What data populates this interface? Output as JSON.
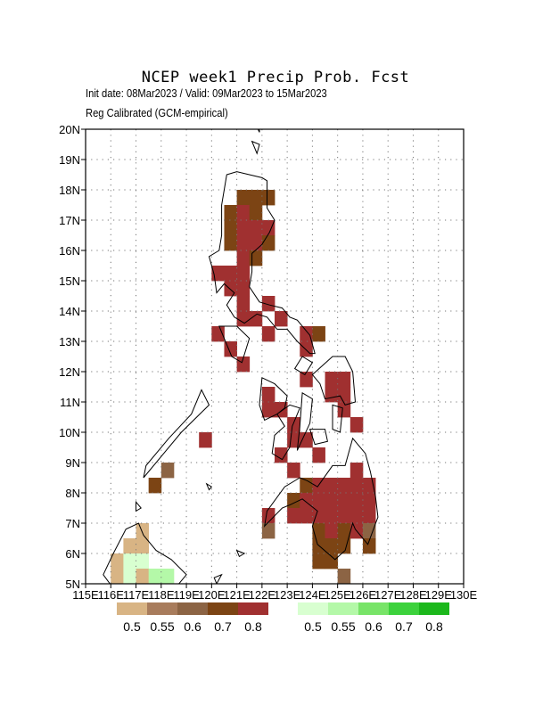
{
  "title": "NCEP week1 Precip Prob. Fcst",
  "subtitle_line1": "Init date: 08Mar2023 / Valid: 09Mar2023 to 15Mar2023",
  "subtitle_line2": "Reg Calibrated (GCM-empirical)",
  "chart_data": {
    "type": "heatmap",
    "title": "NCEP week1 Precip Prob. Fcst",
    "x_axis": {
      "range": [
        115,
        130
      ],
      "tick_labels": [
        "115E",
        "116E",
        "117E",
        "118E",
        "119E",
        "120E",
        "121E",
        "122E",
        "123E",
        "124E",
        "125E",
        "126E",
        "127E",
        "128E",
        "129E",
        "130E"
      ]
    },
    "y_axis": {
      "range": [
        5,
        20
      ],
      "tick_labels": [
        "5N",
        "6N",
        "7N",
        "8N",
        "9N",
        "10N",
        "11N",
        "12N",
        "13N",
        "14N",
        "15N",
        "16N",
        "17N",
        "18N",
        "19N",
        "20N"
      ]
    },
    "grid": true,
    "cell_size_deg": 0.5,
    "legend_below": {
      "below_normal": {
        "colors": [
          "#d8b484",
          "#a87c5c",
          "#8c6444",
          "#7c4414",
          "#a03030"
        ],
        "labels": [
          "0.5",
          "0.55",
          "0.6",
          "0.7",
          "0.8"
        ]
      },
      "above_normal": {
        "colors": [
          "#d8ffd0",
          "#b4f8a8",
          "#78e468",
          "#3cd23c",
          "#1cb81c"
        ],
        "labels": [
          "0.5",
          "0.55",
          "0.6",
          "0.7",
          "0.8"
        ]
      }
    },
    "cells": [
      {
        "lon": 121.25,
        "lat": 17.75,
        "cat": "B70"
      },
      {
        "lon": 121.75,
        "lat": 17.75,
        "cat": "B70"
      },
      {
        "lon": 122.25,
        "lat": 17.75,
        "cat": "B70"
      },
      {
        "lon": 120.75,
        "lat": 17.25,
        "cat": "B70"
      },
      {
        "lon": 121.25,
        "lat": 17.25,
        "cat": "B80"
      },
      {
        "lon": 121.75,
        "lat": 17.25,
        "cat": "B70"
      },
      {
        "lon": 120.75,
        "lat": 16.75,
        "cat": "B70"
      },
      {
        "lon": 121.25,
        "lat": 16.75,
        "cat": "B80"
      },
      {
        "lon": 121.75,
        "lat": 16.75,
        "cat": "B80"
      },
      {
        "lon": 122.25,
        "lat": 16.75,
        "cat": "B80"
      },
      {
        "lon": 120.75,
        "lat": 16.25,
        "cat": "B70"
      },
      {
        "lon": 121.25,
        "lat": 16.25,
        "cat": "B80"
      },
      {
        "lon": 121.75,
        "lat": 16.25,
        "cat": "B80"
      },
      {
        "lon": 122.25,
        "lat": 16.25,
        "cat": "B70"
      },
      {
        "lon": 121.25,
        "lat": 15.75,
        "cat": "B80"
      },
      {
        "lon": 121.75,
        "lat": 15.75,
        "cat": "B70"
      },
      {
        "lon": 120.25,
        "lat": 15.25,
        "cat": "B80"
      },
      {
        "lon": 120.75,
        "lat": 15.25,
        "cat": "B80"
      },
      {
        "lon": 121.25,
        "lat": 15.25,
        "cat": "B80"
      },
      {
        "lon": 120.75,
        "lat": 14.75,
        "cat": "B80"
      },
      {
        "lon": 121.25,
        "lat": 14.75,
        "cat": "B80"
      },
      {
        "lon": 121.25,
        "lat": 14.25,
        "cat": "B80"
      },
      {
        "lon": 122.25,
        "lat": 14.25,
        "cat": "B80"
      },
      {
        "lon": 121.25,
        "lat": 13.75,
        "cat": "B80"
      },
      {
        "lon": 121.75,
        "lat": 13.75,
        "cat": "B80"
      },
      {
        "lon": 122.75,
        "lat": 13.75,
        "cat": "B80"
      },
      {
        "lon": 120.25,
        "lat": 13.25,
        "cat": "B80"
      },
      {
        "lon": 122.25,
        "lat": 13.25,
        "cat": "B80"
      },
      {
        "lon": 123.75,
        "lat": 13.25,
        "cat": "B80"
      },
      {
        "lon": 124.25,
        "lat": 13.25,
        "cat": "B70"
      },
      {
        "lon": 120.75,
        "lat": 12.75,
        "cat": "B80"
      },
      {
        "lon": 123.75,
        "lat": 12.75,
        "cat": "B80"
      },
      {
        "lon": 121.25,
        "lat": 12.25,
        "cat": "B80"
      },
      {
        "lon": 123.75,
        "lat": 11.75,
        "cat": "B80"
      },
      {
        "lon": 124.75,
        "lat": 11.75,
        "cat": "B80"
      },
      {
        "lon": 125.25,
        "lat": 11.75,
        "cat": "B80"
      },
      {
        "lon": 122.25,
        "lat": 11.25,
        "cat": "B80"
      },
      {
        "lon": 124.75,
        "lat": 11.25,
        "cat": "B80"
      },
      {
        "lon": 125.25,
        "lat": 11.25,
        "cat": "B80"
      },
      {
        "lon": 122.25,
        "lat": 10.75,
        "cat": "B80"
      },
      {
        "lon": 122.75,
        "lat": 10.75,
        "cat": "B80"
      },
      {
        "lon": 125.25,
        "lat": 10.75,
        "cat": "B80"
      },
      {
        "lon": 123.25,
        "lat": 10.25,
        "cat": "B80"
      },
      {
        "lon": 125.75,
        "lat": 10.25,
        "cat": "B80"
      },
      {
        "lon": 119.75,
        "lat": 9.75,
        "cat": "B80"
      },
      {
        "lon": 123.25,
        "lat": 9.75,
        "cat": "B80"
      },
      {
        "lon": 123.75,
        "lat": 9.75,
        "cat": "B80"
      },
      {
        "lon": 122.75,
        "lat": 9.25,
        "cat": "B80"
      },
      {
        "lon": 124.25,
        "lat": 9.25,
        "cat": "B80"
      },
      {
        "lon": 118.25,
        "lat": 8.75,
        "cat": "B60"
      },
      {
        "lon": 123.25,
        "lat": 8.75,
        "cat": "B80"
      },
      {
        "lon": 125.75,
        "lat": 8.75,
        "cat": "B80"
      },
      {
        "lon": 117.75,
        "lat": 8.25,
        "cat": "B70"
      },
      {
        "lon": 123.75,
        "lat": 8.25,
        "cat": "B70"
      },
      {
        "lon": 124.25,
        "lat": 8.25,
        "cat": "B80"
      },
      {
        "lon": 124.75,
        "lat": 8.25,
        "cat": "B80"
      },
      {
        "lon": 125.25,
        "lat": 8.25,
        "cat": "B80"
      },
      {
        "lon": 125.75,
        "lat": 8.25,
        "cat": "B80"
      },
      {
        "lon": 126.25,
        "lat": 8.25,
        "cat": "B80"
      },
      {
        "lon": 123.25,
        "lat": 7.75,
        "cat": "B70"
      },
      {
        "lon": 123.75,
        "lat": 7.75,
        "cat": "B80"
      },
      {
        "lon": 124.25,
        "lat": 7.75,
        "cat": "B80"
      },
      {
        "lon": 124.75,
        "lat": 7.75,
        "cat": "B80"
      },
      {
        "lon": 125.25,
        "lat": 7.75,
        "cat": "B80"
      },
      {
        "lon": 125.75,
        "lat": 7.75,
        "cat": "B80"
      },
      {
        "lon": 126.25,
        "lat": 7.75,
        "cat": "B80"
      },
      {
        "lon": 122.25,
        "lat": 7.25,
        "cat": "B80"
      },
      {
        "lon": 123.25,
        "lat": 7.25,
        "cat": "B80"
      },
      {
        "lon": 123.75,
        "lat": 7.25,
        "cat": "B80"
      },
      {
        "lon": 124.25,
        "lat": 7.25,
        "cat": "B80"
      },
      {
        "lon": 124.75,
        "lat": 7.25,
        "cat": "B80"
      },
      {
        "lon": 125.25,
        "lat": 7.25,
        "cat": "B80"
      },
      {
        "lon": 125.75,
        "lat": 7.25,
        "cat": "B80"
      },
      {
        "lon": 126.25,
        "lat": 7.25,
        "cat": "B80"
      },
      {
        "lon": 117.25,
        "lat": 6.75,
        "cat": "B50"
      },
      {
        "lon": 122.25,
        "lat": 6.75,
        "cat": "B60"
      },
      {
        "lon": 124.25,
        "lat": 6.75,
        "cat": "B70"
      },
      {
        "lon": 124.75,
        "lat": 6.75,
        "cat": "B80"
      },
      {
        "lon": 125.25,
        "lat": 6.75,
        "cat": "B70"
      },
      {
        "lon": 125.75,
        "lat": 6.75,
        "cat": "B80"
      },
      {
        "lon": 126.25,
        "lat": 6.75,
        "cat": "B60"
      },
      {
        "lon": 116.75,
        "lat": 6.25,
        "cat": "B50"
      },
      {
        "lon": 117.25,
        "lat": 6.25,
        "cat": "B50"
      },
      {
        "lon": 124.25,
        "lat": 6.25,
        "cat": "B70"
      },
      {
        "lon": 124.75,
        "lat": 6.25,
        "cat": "B70"
      },
      {
        "lon": 125.25,
        "lat": 6.25,
        "cat": "B70"
      },
      {
        "lon": 126.25,
        "lat": 6.25,
        "cat": "B70"
      },
      {
        "lon": 116.25,
        "lat": 5.75,
        "cat": "B50"
      },
      {
        "lon": 116.75,
        "lat": 5.75,
        "cat": "A50"
      },
      {
        "lon": 117.25,
        "lat": 5.75,
        "cat": "A50"
      },
      {
        "lon": 124.25,
        "lat": 5.75,
        "cat": "B70"
      },
      {
        "lon": 124.75,
        "lat": 5.75,
        "cat": "B70"
      },
      {
        "lon": 116.25,
        "lat": 5.25,
        "cat": "B50"
      },
      {
        "lon": 116.75,
        "lat": 5.25,
        "cat": "A50"
      },
      {
        "lon": 117.25,
        "lat": 5.25,
        "cat": "B50"
      },
      {
        "lon": 117.75,
        "lat": 5.25,
        "cat": "A55"
      },
      {
        "lon": 118.25,
        "lat": 5.25,
        "cat": "A55"
      },
      {
        "lon": 125.25,
        "lat": 5.25,
        "cat": "B60"
      },
      {
        "lon": 115.75,
        "lat": 4.75,
        "cat": "A50"
      },
      {
        "lon": 116.25,
        "lat": 4.75,
        "cat": "B50"
      },
      {
        "lon": 116.75,
        "lat": 4.75,
        "cat": "A50"
      },
      {
        "lon": 117.25,
        "lat": 4.75,
        "cat": "A50"
      },
      {
        "lon": 117.75,
        "lat": 4.75,
        "cat": "B60"
      },
      {
        "lon": 118.25,
        "lat": 4.75,
        "cat": "B60"
      },
      {
        "lon": 118.75,
        "lat": 4.75,
        "cat": "B60"
      },
      {
        "lon": 120.25,
        "lat": 4.75,
        "cat": "B60"
      }
    ],
    "category_colors": {
      "B50": "#d8b484",
      "B55": "#a87c5c",
      "B60": "#8c6444",
      "B70": "#7c4414",
      "B80": "#a03030",
      "A50": "#d8ffd0",
      "A55": "#b4f8a8",
      "A60": "#78e468",
      "A70": "#3cd23c",
      "A80": "#1cb81c"
    }
  }
}
